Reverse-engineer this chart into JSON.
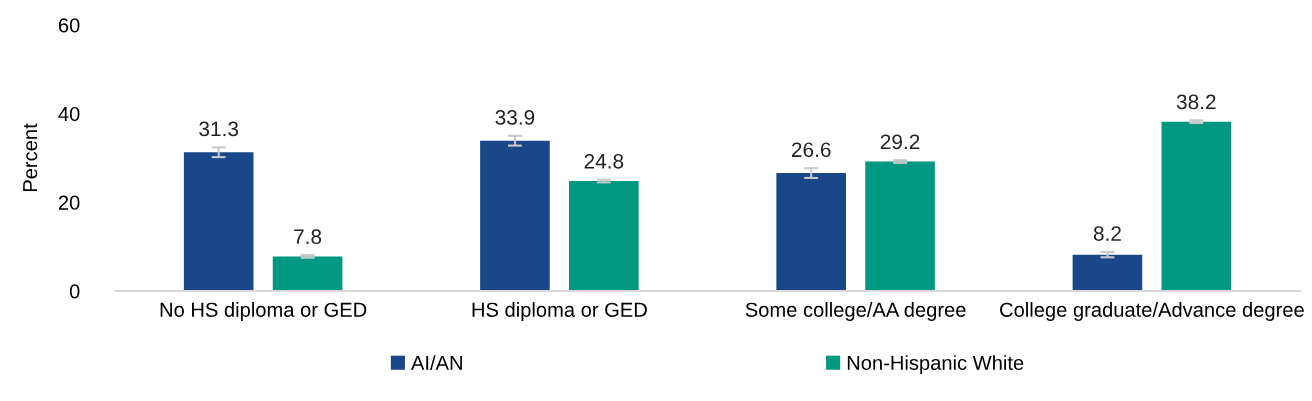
{
  "chart_data": {
    "type": "bar",
    "ylabel": "Percent",
    "categories": [
      "No HS diploma or GED",
      "HS diploma or GED",
      "Some college/AA degree",
      "College graduate/Advance degree"
    ],
    "series": [
      {
        "name": "AI/AN",
        "color": "#1a4789",
        "values": [
          31.3,
          33.9,
          26.6,
          8.2
        ],
        "errors": [
          1.1,
          1.1,
          1.1,
          0.6
        ]
      },
      {
        "name": "Non-Hispanic White",
        "color": "#009881",
        "values": [
          7.8,
          24.8,
          29.2,
          38.2
        ],
        "errors": [
          0.3,
          0.3,
          0.3,
          0.3
        ]
      }
    ],
    "ylim": [
      0,
      60
    ],
    "yticks": [
      0,
      20,
      40,
      60
    ],
    "grid": false,
    "legend": "bottom",
    "data_labels": true
  }
}
